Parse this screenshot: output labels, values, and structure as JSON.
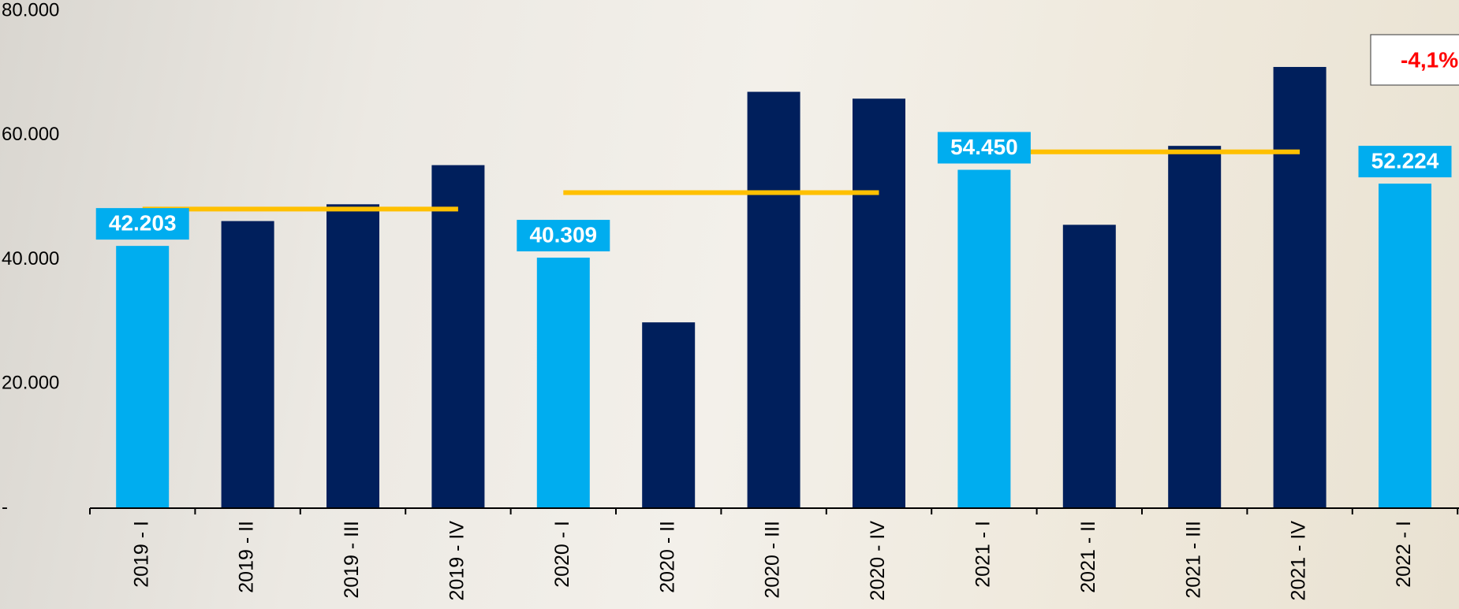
{
  "chart_data": {
    "type": "bar",
    "categories": [
      "2019 - I",
      "2019 - II",
      "2019 - III",
      "2019 - IV",
      "2020 - I",
      "2020 - II",
      "2020 - III",
      "2020 - IV",
      "2021 - I",
      "2021 - II",
      "2021 - III",
      "2021 - IV",
      "2022 - I"
    ],
    "values": [
      42203,
      46200,
      48900,
      55200,
      40309,
      29900,
      67000,
      65900,
      54450,
      45600,
      58300,
      71000,
      52224
    ],
    "value_labels": [
      "42.203",
      null,
      null,
      null,
      "40.309",
      null,
      null,
      null,
      "54.450",
      null,
      null,
      null,
      "52.224"
    ],
    "colors": [
      "#00adef",
      "#001f5c",
      "#001f5c",
      "#001f5c",
      "#00adef",
      "#001f5c",
      "#001f5c",
      "#001f5c",
      "#00adef",
      "#001f5c",
      "#001f5c",
      "#001f5c",
      "#00adef"
    ],
    "reference_lines": [
      {
        "value": 48126,
        "from": 0,
        "to": 3
      },
      {
        "value": 50777,
        "from": 4,
        "to": 7
      },
      {
        "value": 57337,
        "from": 8,
        "to": 11
      }
    ],
    "reference_color": "#ffc000",
    "annotation": "-4,1%",
    "ylim": [
      0,
      80000
    ],
    "yticks": [
      {
        "value": 0,
        "label": "-"
      },
      {
        "value": 20000,
        "label": "20.000"
      },
      {
        "value": 40000,
        "label": "40.000"
      },
      {
        "value": 60000,
        "label": "60.000"
      },
      {
        "value": 80000,
        "label": "80.000"
      }
    ]
  }
}
